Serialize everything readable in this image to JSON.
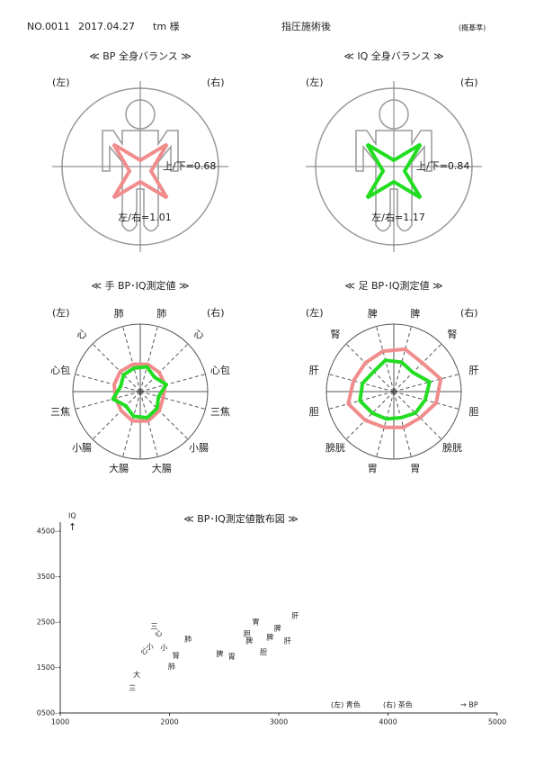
{
  "header": {
    "number": "NO.0011",
    "date": "2017.04.27",
    "client": "tm 様",
    "session": "指圧施術後",
    "basis": "(概基準)"
  },
  "balance_panels": [
    {
      "title": "≪ BP 全身バランス ≫",
      "left": "(左)",
      "right": "(右)",
      "up_down": "上/下=0.68",
      "left_right": "左/右=1.01",
      "color": "#f08c8c"
    },
    {
      "title": "≪ IQ 全身バランス ≫",
      "left": "(左)",
      "right": "(右)",
      "up_down": "上/下=0.84",
      "left_right": "左/右=1.17",
      "color": "#22dd22"
    }
  ],
  "chart_data": [
    {
      "type": "radar",
      "title": "≪ 手 BP･IQ測定値 ≫",
      "left_label": "(左)",
      "right_label": "(右)",
      "categories": [
        "肺",
        "心",
        "心包",
        "三焦",
        "小腸",
        "大腸",
        "大腸",
        "小腸",
        "三焦",
        "心包",
        "心",
        "肺"
      ],
      "category_colors": [
        "#1a1a9a",
        "#1a1a9a",
        "#1a1a9a",
        "#8b1a1a",
        "#8b1a1a",
        "#8b1a1a",
        "#8b1a1a",
        "#8b1a1a",
        "#8b1a1a",
        "#1a1a9a",
        "#1a1a9a",
        "#1a1a9a"
      ],
      "series": [
        {
          "color": "#f08c8c",
          "values": [
            0.42,
            0.4,
            0.38,
            0.35,
            0.4,
            0.45,
            0.45,
            0.4,
            0.38,
            0.4,
            0.42,
            0.42
          ]
        },
        {
          "color": "#22dd22",
          "values": [
            0.38,
            0.3,
            0.4,
            0.28,
            0.35,
            0.4,
            0.38,
            0.3,
            0.42,
            0.3,
            0.35,
            0.36
          ]
        }
      ]
    },
    {
      "type": "radar",
      "title": "≪ 足 BP･IQ測定値 ≫",
      "left_label": "(左)",
      "right_label": "(右)",
      "categories": [
        "脾",
        "腎",
        "肝",
        "胆",
        "膀胱",
        "胃",
        "胃",
        "膀胱",
        "胆",
        "肝",
        "腎",
        "脾"
      ],
      "category_colors": [
        "#1a1a9a",
        "#1a1a9a",
        "#1a1a9a",
        "#8b1a1a",
        "#8b1a1a",
        "#8b1a1a",
        "#8b1a1a",
        "#8b1a1a",
        "#8b1a1a",
        "#1a1a9a",
        "#1a1a9a",
        "#1a1a9a"
      ],
      "series": [
        {
          "color": "#f08c8c",
          "values": [
            0.65,
            0.6,
            0.72,
            0.65,
            0.55,
            0.55,
            0.55,
            0.6,
            0.7,
            0.62,
            0.6,
            0.62
          ]
        },
        {
          "color": "#22dd22",
          "values": [
            0.45,
            0.4,
            0.55,
            0.48,
            0.45,
            0.4,
            0.42,
            0.45,
            0.52,
            0.48,
            0.42,
            0.48
          ]
        }
      ]
    },
    {
      "type": "scatter",
      "title": "≪ BP･IQ測定値散布図 ≫",
      "x_label": "→ BP",
      "y_label": "IQ",
      "y_arrow": "↑",
      "xlim": [
        1000,
        5000
      ],
      "ylim": [
        500,
        4700
      ],
      "xticks": [
        1000,
        2000,
        3000,
        4000,
        5000
      ],
      "yticks": [
        {
          "value": 500,
          "label": "0500-"
        },
        {
          "value": 1500,
          "label": "1500-"
        },
        {
          "value": 2500,
          "label": "2500-"
        },
        {
          "value": 3500,
          "label": "3500-"
        },
        {
          "value": 4500,
          "label": "4500-"
        }
      ],
      "series": [
        {
          "name": "(左) 青色",
          "color": "#1a1a9a",
          "labels": [
            "三",
            "心",
            "小",
            "肺",
            "腎",
            "胆",
            "脾",
            "脾",
            "肝"
          ],
          "x": [
            1860,
            1770,
            1950,
            2170,
            2060,
            2710,
            2730,
            2990,
            3150
          ],
          "values": [
            2400,
            1860,
            1940,
            2120,
            1760,
            2240,
            2080,
            2360,
            2640
          ]
        },
        {
          "name": "(右) 茶色",
          "color": "#8b1a1a",
          "labels": [
            "心",
            "小",
            "肺",
            "大",
            "三",
            "脾",
            "胃",
            "胃",
            "胆",
            "脾",
            "肝"
          ],
          "x": [
            1900,
            1820,
            2020,
            1700,
            1660,
            2460,
            2570,
            2790,
            2860,
            2920,
            3080
          ],
          "values": [
            2240,
            1960,
            1520,
            1340,
            1040,
            1800,
            1740,
            2500,
            1840,
            2160,
            2080
          ]
        }
      ]
    }
  ]
}
